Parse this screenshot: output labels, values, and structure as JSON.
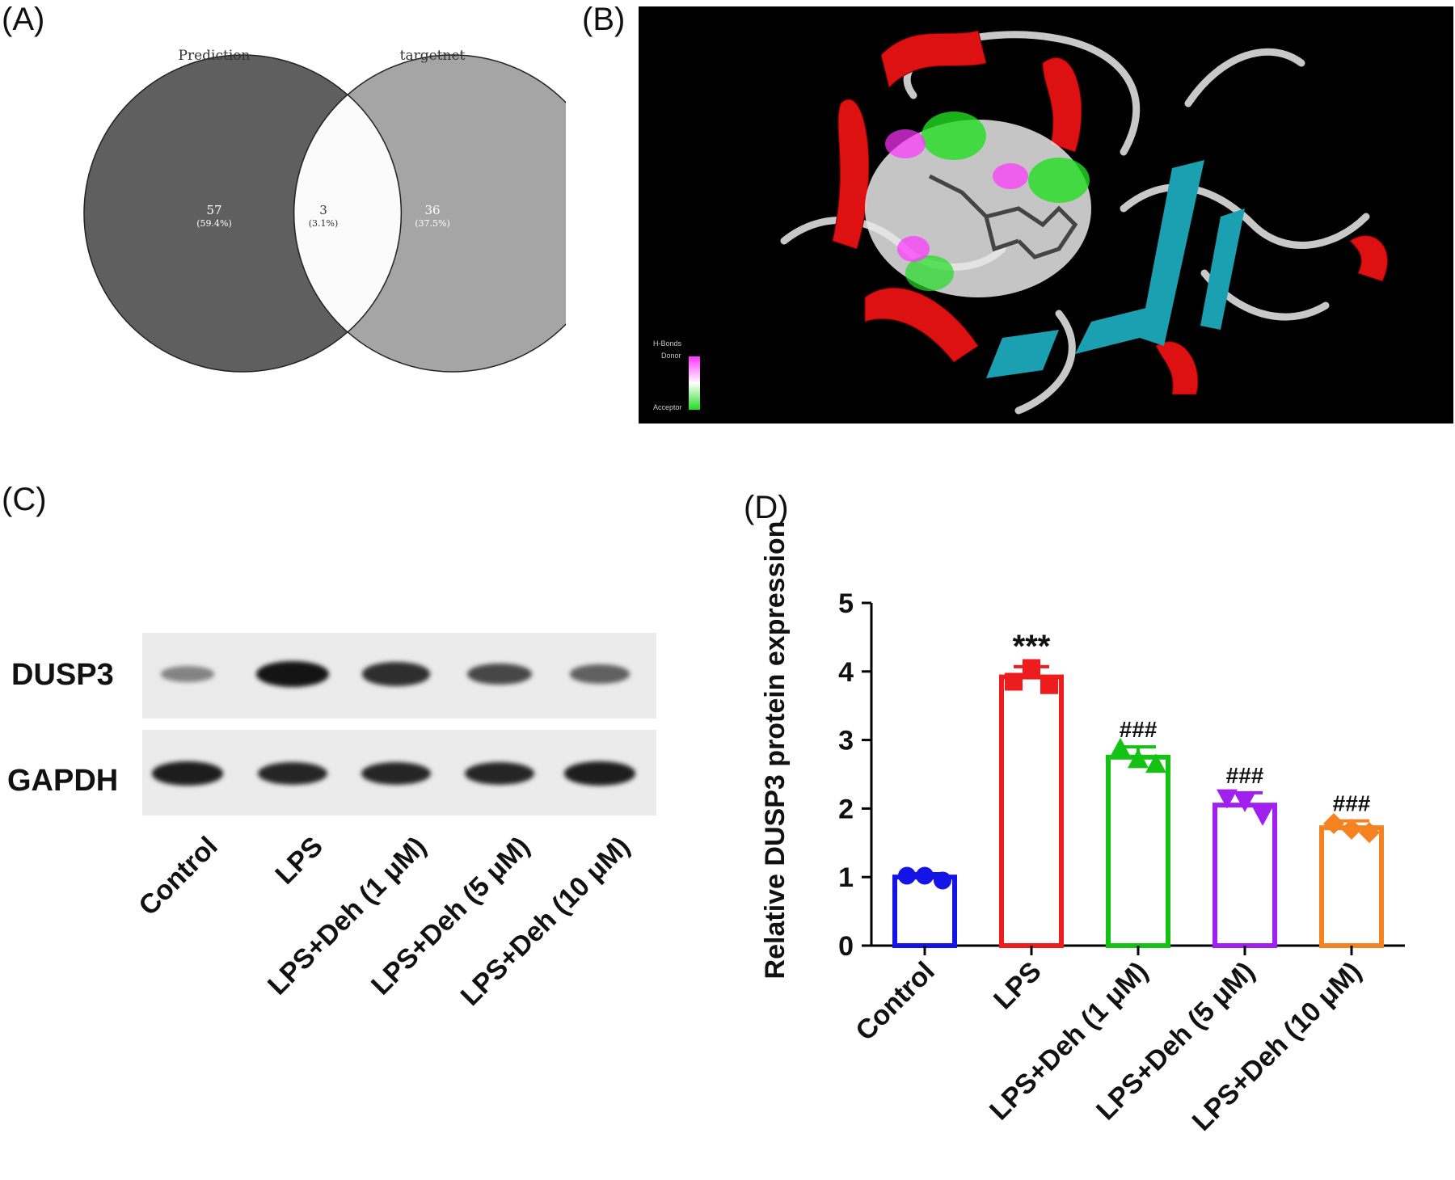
{
  "panels": {
    "a": "(A)",
    "b": "(B)",
    "c": "(C)",
    "d": "(D)"
  },
  "venn": {
    "left_label": "Prediction",
    "right_label": "targetnet",
    "left_only": {
      "count": "57",
      "pct": "(59.4%)"
    },
    "overlap": {
      "count": "3",
      "pct": "(3.1%)"
    },
    "right_only": {
      "count": "36",
      "pct": "(37.5%)"
    },
    "colors": {
      "left": "#5f5f5f",
      "right": "#a5a5a5",
      "overlap": "#fbfbfb"
    }
  },
  "molecule": {
    "legend_title": "H-Bonds",
    "donor_label": "Donor",
    "acceptor_label": "Acceptor",
    "colors": {
      "helix": "#dd1111",
      "sheet": "#1aa0b0",
      "coil": "#c8c8c8",
      "donor": "#ff33ff",
      "acceptor": "#22dd22",
      "background": "#000000"
    }
  },
  "blot": {
    "rows": [
      "DUSP3",
      "GAPDH"
    ],
    "lanes": [
      "Control",
      "LPS",
      "LPS+Deh (1 μM)",
      "LPS+Deh (5 μM)",
      "LPS+Deh (10 μM)"
    ],
    "band_intensity": {
      "DUSP3": [
        0.35,
        1.0,
        0.85,
        0.7,
        0.55
      ],
      "GAPDH": [
        0.95,
        0.9,
        0.9,
        0.9,
        0.95
      ]
    }
  },
  "chart_data": {
    "type": "bar",
    "title": "",
    "xlabel": "",
    "ylabel": "Relative DUSP3 protein expression",
    "ylim": [
      0,
      5
    ],
    "yticks": [
      0,
      1,
      2,
      3,
      4,
      5
    ],
    "categories": [
      "Control",
      "LPS",
      "LPS+Deh (1 μM)",
      "LPS+Deh (5 μM)",
      "LPS+Deh (10 μM)"
    ],
    "values": [
      1.0,
      3.92,
      2.75,
      2.05,
      1.72
    ],
    "errors": [
      0.05,
      0.15,
      0.15,
      0.18,
      0.1
    ],
    "points": [
      [
        1.02,
        1.02,
        0.95
      ],
      [
        3.85,
        4.05,
        3.8
      ],
      [
        2.88,
        2.72,
        2.65
      ],
      [
        2.15,
        2.1,
        1.9
      ],
      [
        1.78,
        1.7,
        1.65
      ]
    ],
    "markers": [
      "circle",
      "square",
      "triangle-up",
      "triangle-down",
      "diamond"
    ],
    "annotations": [
      "",
      "***",
      "###",
      "###",
      "###"
    ],
    "colors": [
      "#1414e6",
      "#ee1c1c",
      "#16c116",
      "#a020f0",
      "#f58220"
    ],
    "grid": false,
    "legend": "none"
  }
}
